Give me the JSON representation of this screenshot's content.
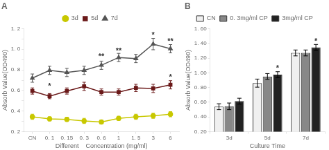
{
  "chart_data": [
    {
      "type": "line",
      "title": "A",
      "categories": [
        "CN",
        "0. 1",
        "0. 15",
        "0. 3",
        "0. 6",
        "1",
        "1. 5",
        "3",
        "6"
      ],
      "series": [
        {
          "name": "3d",
          "color": "#c8c800",
          "marker": "circle",
          "values": [
            0.345,
            0.325,
            0.32,
            0.305,
            0.295,
            0.33,
            0.345,
            0.355,
            0.37
          ],
          "yerr": [
            0.025,
            0.02,
            0.02,
            0.025,
            0.02,
            0.02,
            0.025,
            0.025,
            0.025
          ]
        },
        {
          "name": "5d",
          "color": "#6b1a1a",
          "marker": "square",
          "values": [
            0.595,
            0.545,
            0.595,
            0.64,
            0.585,
            0.585,
            0.625,
            0.62,
            0.655
          ],
          "yerr": [
            0.03,
            0.025,
            0.03,
            0.04,
            0.03,
            0.03,
            0.035,
            0.04,
            0.04
          ]
        },
        {
          "name": "7d",
          "color": "#555555",
          "marker": "triangle",
          "values": [
            0.72,
            0.795,
            0.775,
            0.795,
            0.845,
            0.92,
            0.91,
            1.05,
            1.005
          ],
          "yerr": [
            0.04,
            0.04,
            0.04,
            0.04,
            0.04,
            0.04,
            0.04,
            0.055,
            0.04
          ]
        }
      ],
      "annotations": [
        {
          "text": "*",
          "category": "0. 1",
          "y": 0.625
        },
        {
          "text": "**",
          "category": "0. 6",
          "y": 0.91
        },
        {
          "text": "**",
          "category": "1",
          "y": 0.965
        },
        {
          "text": "*",
          "category": "3",
          "y": 1.12
        },
        {
          "text": "**",
          "category": "6",
          "y": 1.06
        },
        {
          "text": "*",
          "category": "6",
          "y": 0.71
        }
      ],
      "xlabel": "Different    Concentration (mg/ml)",
      "ylabel": "Absorb Value(OD490)",
      "ylim": [
        0.2,
        1.2
      ],
      "yticks": [
        {
          "value": 0.2,
          "label": "0. 2"
        },
        {
          "value": 0.3,
          "label": ""
        },
        {
          "value": 0.4,
          "label": "0. 4"
        },
        {
          "value": 0.5,
          "label": ""
        },
        {
          "value": 0.6,
          "label": "0. 6"
        },
        {
          "value": 0.7,
          "label": ""
        },
        {
          "value": 0.8,
          "label": "0. 8"
        },
        {
          "value": 0.9,
          "label": ""
        },
        {
          "value": 1.0,
          "label": "1. 0"
        },
        {
          "value": 1.1,
          "label": ""
        },
        {
          "value": 1.2,
          "label": "1. 2"
        }
      ],
      "grid": false,
      "legend": "top"
    },
    {
      "type": "bar",
      "title": "B",
      "categories": [
        "3d",
        "5d",
        "7d"
      ],
      "series": [
        {
          "name": "CN",
          "color": "#f0f0f0",
          "values": [
            0.54,
            0.86,
            1.27
          ],
          "yerr": [
            0.04,
            0.055,
            0.04
          ]
        },
        {
          "name": "0. 3mg/ml CP",
          "color": "#888888",
          "values": [
            0.545,
            0.95,
            1.27
          ],
          "yerr": [
            0.045,
            0.04,
            0.04
          ]
        },
        {
          "name": "3mg/ml CP",
          "color": "#222222",
          "values": [
            0.615,
            0.975,
            1.345
          ],
          "yerr": [
            0.04,
            0.04,
            0.04
          ]
        }
      ],
      "annotations": [
        {
          "text": "*",
          "category": "5d",
          "series": "3mg/ml CP",
          "y": 1.035
        },
        {
          "text": "*",
          "category": "7d",
          "series": "3mg/ml CP",
          "y": 1.405
        }
      ],
      "xlabel": "Culture Time",
      "ylabel": "Absorb Value(OD490)",
      "ylim": [
        0.2,
        1.6
      ],
      "yticks": [
        {
          "value": 0.2,
          "label": "0. 20"
        },
        {
          "value": 0.4,
          "label": "0. 40"
        },
        {
          "value": 0.6,
          "label": "0. 60"
        },
        {
          "value": 0.8,
          "label": "0. 80"
        },
        {
          "value": 1.0,
          "label": "1. 00"
        },
        {
          "value": 1.2,
          "label": "1. 20"
        },
        {
          "value": 1.4,
          "label": "1. 40"
        },
        {
          "value": 1.6,
          "label": "1. 60"
        }
      ],
      "grid": false,
      "legend": "top"
    }
  ]
}
